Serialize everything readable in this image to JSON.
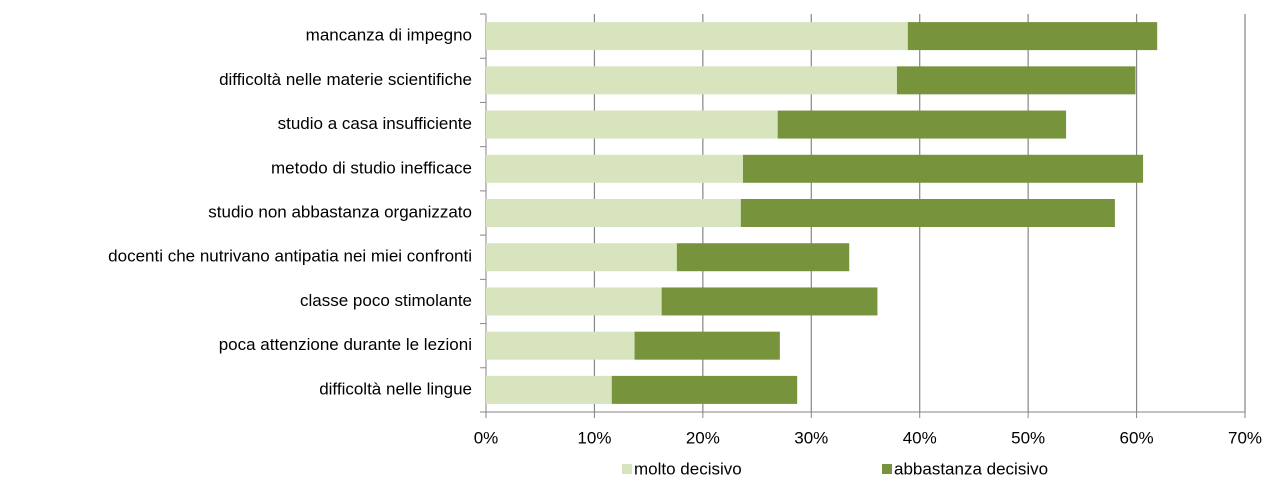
{
  "chart_data": {
    "type": "stacked_barh",
    "categories": [
      "mancanza di impegno",
      "difficoltà nelle materie scientifiche",
      "studio a casa insufficiente",
      "metodo di studio inefficace",
      "studio non abbastanza organizzato",
      "docenti che nutrivano antipatia nei miei confronti",
      "classe poco stimolante",
      "poca attenzione durante le lezioni",
      "difficoltà nelle lingue"
    ],
    "series": [
      {
        "name": "molto decisivo",
        "color": "#d7e4bd",
        "values": [
          38.9,
          37.9,
          26.9,
          23.7,
          23.5,
          17.6,
          16.2,
          13.7,
          11.6
        ]
      },
      {
        "name": "abbastanza decisivo",
        "color": "#77933c",
        "values": [
          23.0,
          22.0,
          26.6,
          36.9,
          34.5,
          15.9,
          19.9,
          13.4,
          17.1
        ]
      }
    ],
    "xlim": [
      0,
      70
    ],
    "xticks": [
      {
        "value": 0,
        "label": "0%"
      },
      {
        "value": 10,
        "label": "10%"
      },
      {
        "value": 20,
        "label": "20%"
      },
      {
        "value": 30,
        "label": "30%"
      },
      {
        "value": 40,
        "label": "40%"
      },
      {
        "value": 50,
        "label": "50%"
      },
      {
        "value": 60,
        "label": "60%"
      },
      {
        "value": 70,
        "label": "70%"
      }
    ],
    "grid": true,
    "legend": "bottom"
  }
}
